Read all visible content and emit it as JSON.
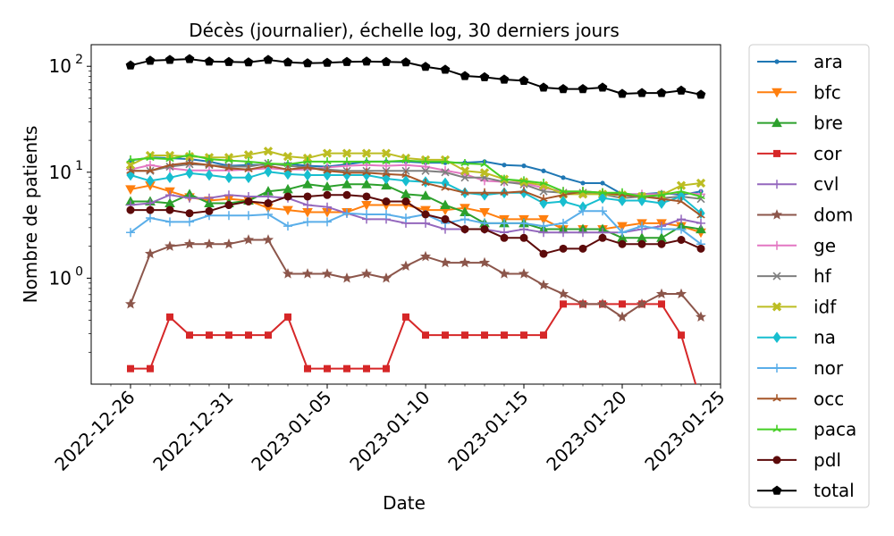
{
  "chart_data": {
    "type": "line",
    "title": "Décès (journalier), échelle log, 30 derniers jours",
    "xlabel": "Date",
    "ylabel": "Nombre de patients",
    "yscale": "log",
    "ylim": [
      0.1,
      160
    ],
    "xlim": [
      "2022-12-24",
      "2023-01-25"
    ],
    "grid": false,
    "legend_position": "outside-right",
    "x": [
      "2022-12-26",
      "2022-12-27",
      "2022-12-28",
      "2022-12-29",
      "2022-12-30",
      "2022-12-31",
      "2023-01-01",
      "2023-01-02",
      "2023-01-03",
      "2023-01-04",
      "2023-01-05",
      "2023-01-06",
      "2023-01-07",
      "2023-01-08",
      "2023-01-09",
      "2023-01-10",
      "2023-01-11",
      "2023-01-12",
      "2023-01-13",
      "2023-01-14",
      "2023-01-15",
      "2023-01-16",
      "2023-01-17",
      "2023-01-18",
      "2023-01-19",
      "2023-01-20",
      "2023-01-21",
      "2023-01-22",
      "2023-01-23",
      "2023-01-24"
    ],
    "x_tick_labels": [
      "2022-12-26",
      "2022-12-31",
      "2023-01-05",
      "2023-01-10",
      "2023-01-15",
      "2023-01-20",
      "2023-01-25"
    ],
    "y_tick_labels": [
      {
        "value": 1,
        "base": "10",
        "exp": "0"
      },
      {
        "value": 10,
        "base": "10",
        "exp": "1"
      },
      {
        "value": 100,
        "base": "10",
        "exp": "2"
      }
    ],
    "series": [
      {
        "name": "ara",
        "color": "#1f77b4",
        "marker": "point",
        "values": [
          12.9,
          13.8,
          13.6,
          13.3,
          12.6,
          11.5,
          11.7,
          11.8,
          12,
          11.5,
          11.3,
          11.9,
          12.6,
          12.6,
          12.6,
          12.3,
          12.3,
          12.3,
          12.6,
          11.7,
          11.5,
          10.3,
          8.9,
          7.9,
          7.9,
          6.2,
          6.2,
          6.4,
          6.1,
          6.6
        ]
      },
      {
        "name": "bfc",
        "color": "#ff7f0e",
        "marker": "triangle-down",
        "values": [
          6.9,
          7.5,
          6.6,
          5.8,
          5.4,
          5.6,
          5.4,
          4.6,
          4.4,
          4.2,
          4.2,
          4.2,
          4.9,
          4.9,
          4.9,
          4.4,
          4.4,
          4.6,
          4.2,
          3.6,
          3.6,
          3.6,
          2.9,
          2.9,
          2.9,
          3.1,
          3.3,
          3.3,
          3.1,
          2.7
        ]
      },
      {
        "name": "bre",
        "color": "#2ca02c",
        "marker": "triangle-up",
        "values": [
          5.3,
          5.3,
          5.1,
          6.2,
          5.1,
          5.1,
          5.4,
          6.6,
          6.9,
          7.7,
          7.3,
          7.7,
          7.7,
          7.5,
          6.2,
          6,
          4.9,
          4.2,
          3.3,
          3.3,
          3.3,
          2.9,
          2.9,
          2.9,
          2.9,
          2.4,
          2.4,
          2.4,
          3.1,
          2.9
        ]
      },
      {
        "name": "cor",
        "color": "#d62728",
        "marker": "square",
        "values": [
          0.14,
          0.14,
          0.43,
          0.29,
          0.29,
          0.29,
          0.29,
          0.29,
          0.43,
          0.14,
          0.14,
          0.14,
          0.14,
          0.14,
          0.43,
          0.29,
          0.29,
          0.29,
          0.29,
          0.29,
          0.29,
          0.29,
          0.57,
          0.57,
          0.57,
          0.57,
          0.57,
          0.57,
          0.29,
          null
        ]
      },
      {
        "name": "cvl",
        "color": "#9467bd",
        "marker": "plus",
        "values": [
          4.9,
          5.1,
          6.1,
          5.7,
          5.7,
          6.1,
          5.9,
          5.9,
          5.7,
          4.9,
          4.7,
          4.1,
          3.6,
          3.6,
          3.3,
          3.3,
          2.9,
          2.9,
          2.9,
          2.7,
          2.9,
          2.7,
          2.7,
          2.7,
          2.7,
          2.7,
          2.9,
          3.1,
          3.6,
          3.3
        ]
      },
      {
        "name": "dom",
        "color": "#8c564b",
        "marker": "star",
        "values": [
          0.57,
          1.7,
          2,
          2.1,
          2.1,
          2.1,
          2.3,
          2.3,
          1.1,
          1.1,
          1.1,
          1,
          1.1,
          1,
          1.3,
          1.6,
          1.4,
          1.4,
          1.4,
          1.1,
          1.1,
          0.86,
          0.71,
          0.57,
          0.57,
          0.43,
          0.57,
          0.71,
          0.71,
          0.43
        ]
      },
      {
        "name": "ge",
        "color": "#e377c2",
        "marker": "plus",
        "values": [
          10.6,
          11.7,
          10.9,
          10.4,
          10.4,
          10.4,
          10.6,
          10.9,
          10.6,
          10.6,
          11.1,
          11.5,
          11.7,
          11.5,
          11.7,
          11.3,
          10.4,
          9.6,
          8.3,
          8.1,
          7.9,
          7.1,
          6.6,
          6.4,
          6.2,
          6.2,
          6.2,
          6.2,
          6.4,
          6.2
        ]
      },
      {
        "name": "hf",
        "color": "#7f7f7f",
        "marker": "x",
        "values": [
          10.3,
          10.3,
          11.3,
          11.9,
          11.7,
          11.3,
          11.3,
          12.1,
          11.5,
          11.1,
          10.6,
          10.3,
          10.3,
          10.3,
          10.3,
          10.3,
          10,
          8.9,
          8.9,
          8.1,
          7.7,
          6.6,
          6.4,
          6.4,
          6.2,
          5.7,
          5.9,
          5.7,
          5.9,
          5.6
        ]
      },
      {
        "name": "idf",
        "color": "#bcbd22",
        "marker": "x-bold",
        "values": [
          11.7,
          14.4,
          14.4,
          14.1,
          13.8,
          13.8,
          14.6,
          15.8,
          14.1,
          13.6,
          15.1,
          15.1,
          15.1,
          15.1,
          13.6,
          13.1,
          13.1,
          10.3,
          9.9,
          8.6,
          8.1,
          7.5,
          6.2,
          6.2,
          6.2,
          6.1,
          5.9,
          6.1,
          7.5,
          7.9
        ]
      },
      {
        "name": "na",
        "color": "#17becf",
        "marker": "diamond",
        "values": [
          9.4,
          8.3,
          8.9,
          9.8,
          9.4,
          8.9,
          8.9,
          10.1,
          9.6,
          9.4,
          9.4,
          9.4,
          9.4,
          8.7,
          8.3,
          8.1,
          7.9,
          6.4,
          6.1,
          6.4,
          6.4,
          5.1,
          5.3,
          4.7,
          5.7,
          5.4,
          5.4,
          5.1,
          5.9,
          4.1
        ]
      },
      {
        "name": "nor",
        "color": "#5aaee9",
        "marker": "plus",
        "values": [
          2.7,
          3.7,
          3.4,
          3.4,
          3.9,
          3.9,
          3.9,
          4,
          3.1,
          3.4,
          3.4,
          4.1,
          4,
          4,
          3.7,
          4,
          3.3,
          3.6,
          3.3,
          3.3,
          3.3,
          3.1,
          3.3,
          4.3,
          4.3,
          2.7,
          3.1,
          2.9,
          2.9,
          2.1
        ]
      },
      {
        "name": "occ",
        "color": "#a65628",
        "marker": "tri",
        "values": [
          10.3,
          10.3,
          11.7,
          12.3,
          11.7,
          10.9,
          10.6,
          11.5,
          10.6,
          11.1,
          10.3,
          9.9,
          9.9,
          9.6,
          9.4,
          7.9,
          7.1,
          6.4,
          6.4,
          6.4,
          6.6,
          5.6,
          6.1,
          6.6,
          6.4,
          6.1,
          5.9,
          5.6,
          5.3,
          3.9
        ]
      },
      {
        "name": "paca",
        "color": "#44cf24",
        "marker": "tri",
        "values": [
          13.1,
          13.6,
          13.3,
          14.6,
          13.3,
          12.9,
          12.6,
          12.1,
          11.9,
          12.6,
          12.6,
          12.6,
          12.6,
          12.6,
          12.9,
          12.6,
          12.6,
          12.1,
          11.9,
          8.6,
          8.3,
          7.9,
          6.6,
          6.6,
          6.4,
          6.4,
          5.9,
          6.1,
          6.6,
          5.9
        ]
      },
      {
        "name": "pdl",
        "color": "#5c0a0a",
        "marker": "circle",
        "values": [
          4.4,
          4.4,
          4.4,
          4.1,
          4.3,
          4.9,
          5.3,
          5.1,
          5.9,
          5.9,
          6.1,
          6.1,
          5.9,
          5.3,
          5.3,
          4,
          3.6,
          2.9,
          2.9,
          2.4,
          2.4,
          1.7,
          1.9,
          1.9,
          2.4,
          2.1,
          2.1,
          2.1,
          2.3,
          1.9
        ]
      },
      {
        "name": "total",
        "color": "#000000",
        "marker": "pentagon",
        "values": [
          102,
          113,
          115,
          117,
          111,
          110,
          109,
          115,
          109,
          107,
          108,
          110,
          111,
          110,
          109,
          99,
          93,
          81,
          79,
          75,
          73,
          63,
          61,
          61,
          63,
          55,
          56,
          56,
          59,
          54
        ]
      }
    ]
  }
}
